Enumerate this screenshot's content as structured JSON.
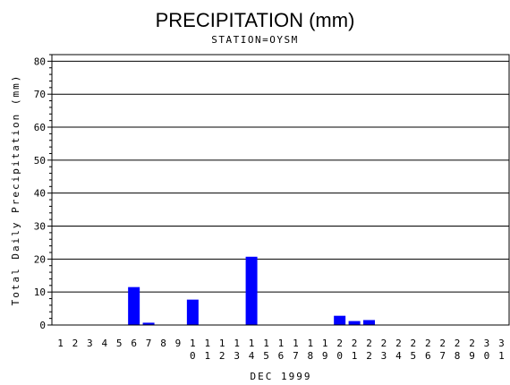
{
  "chart_data": {
    "type": "bar",
    "title": "PRECIPITATION (mm)",
    "subtitle": "STATION=OYSM",
    "xlabel": "DEC 1999",
    "ylabel": "Total Daily Precipitation (mm)",
    "ylim": [
      0,
      82
    ],
    "yticks": [
      0,
      10,
      20,
      30,
      40,
      50,
      60,
      70,
      80
    ],
    "grid": true,
    "bar_color": "#0000ff",
    "categories": [
      "1",
      "2",
      "3",
      "4",
      "5",
      "6",
      "7",
      "8",
      "9",
      "10",
      "11",
      "12",
      "13",
      "14",
      "15",
      "16",
      "17",
      "18",
      "19",
      "20",
      "21",
      "22",
      "23",
      "24",
      "25",
      "26",
      "27",
      "28",
      "29",
      "30",
      "31"
    ],
    "values": [
      0,
      0,
      0,
      0,
      0,
      11.5,
      0.7,
      0,
      0,
      7.7,
      0,
      0,
      0,
      20.7,
      0,
      0,
      0,
      0,
      0,
      2.8,
      1.2,
      1.5,
      0,
      0,
      0,
      0,
      0,
      0,
      0,
      0,
      0
    ]
  }
}
